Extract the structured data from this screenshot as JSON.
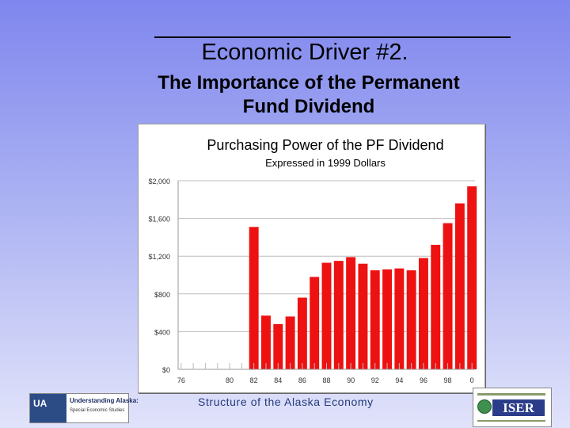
{
  "slide": {
    "title": "Economic Driver #2.",
    "subtitle_line1": "The Importance of the Permanent",
    "subtitle_line2": "Fund Dividend",
    "footer": "Structure of the Alaska Economy"
  },
  "logos": {
    "left_mark": "UA",
    "left_name": "Understanding Alaska:",
    "left_sub": "Special Economic Studies",
    "right_name": "ISER"
  },
  "colors": {
    "bar": "#ee1111",
    "background_top": "#7f86ee",
    "grid": "#bdbdbd"
  },
  "chart_data": {
    "type": "bar",
    "title": "Purchasing Power of the PF Dividend",
    "subtitle": "Expressed in 1999 Dollars",
    "ylim": [
      0,
      2000
    ],
    "y_ticks": [
      0,
      400,
      800,
      1200,
      1600,
      2000
    ],
    "y_tick_labels": [
      "$0",
      "$400",
      "$800",
      "$1,200",
      "$1,600",
      "$2,000"
    ],
    "categories": [
      "76",
      "77",
      "78",
      "79",
      "80",
      "81",
      "82",
      "83",
      "84",
      "85",
      "86",
      "87",
      "88",
      "89",
      "90",
      "91",
      "92",
      "93",
      "94",
      "95",
      "96",
      "97",
      "98",
      "99",
      "0"
    ],
    "x_tick_labels": {
      "76": "76",
      "80": "80",
      "82": "82",
      "84": "84",
      "86": "86",
      "88": "88",
      "90": "90",
      "92": "92",
      "94": "94",
      "96": "96",
      "98": "98",
      "0": "0"
    },
    "values": [
      0,
      0,
      0,
      0,
      0,
      0,
      1510,
      570,
      480,
      560,
      760,
      980,
      1130,
      1150,
      1190,
      1120,
      1050,
      1060,
      1070,
      1050,
      1180,
      1320,
      1550,
      1760,
      1940
    ],
    "grid": true,
    "legend": "none"
  }
}
